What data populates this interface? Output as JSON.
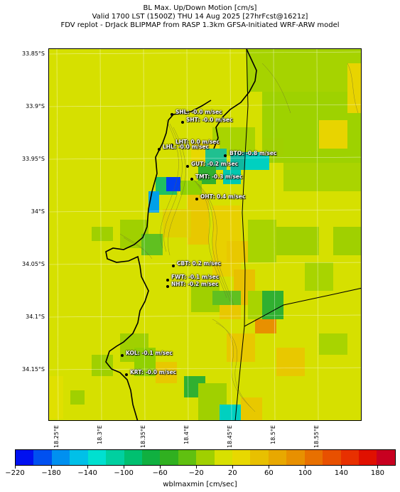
{
  "titles": {
    "line1": "BL Max. Up/Down Motion [cm/s]",
    "line2": "Valid 1700 LST (1500Z) THU 14 Aug 2025 [27hrFcst@1621z]",
    "line3": "FDV replot - DrJack BLIPMAP from RASP 1.3km GFSA-Initiated WRF-ARW model"
  },
  "lat_labels": [
    "33.85°S",
    "33.9°S",
    "33.95°S",
    "34°S",
    "34.05°S",
    "34.1°S",
    "34.15°S"
  ],
  "lon_labels": [
    "18.25°E",
    "18.3°E",
    "18.35°E",
    "18.4°E",
    "18.45°E",
    "18.5°E",
    "18.55°E"
  ],
  "stations": [
    {
      "code": "SHL",
      "label": "SHL: -0.0 m/sec"
    },
    {
      "code": "SHT",
      "label": "SHT: -0.0 m/sec"
    },
    {
      "code": "LHT",
      "label": "LHT: 0.0 m/sec"
    },
    {
      "code": "LHL",
      "label": "LHL: -0.0 m/sec"
    },
    {
      "code": "BTO",
      "label": "BTO: -0.8 m/sec"
    },
    {
      "code": "GUT",
      "label": "GUT: -0.2 m/sec"
    },
    {
      "code": "TMT",
      "label": "TMT: -0.3 m/sec"
    },
    {
      "code": "OHT",
      "label": "OHT: 0.4 m/sec"
    },
    {
      "code": "CBT",
      "label": "CBT: 0.2 m/sec"
    },
    {
      "code": "FWT",
      "label": "FWT: -0.1 m/sec"
    },
    {
      "code": "NHT",
      "label": "NHT: -0.2 m/sec"
    },
    {
      "code": "KOL",
      "label": "KOL: -0.1 m/sec"
    },
    {
      "code": "KRT",
      "label": "KRT: -0.0 m/sec"
    }
  ],
  "colorbar": {
    "title": "wblmaxmin [cm/sec]",
    "tick_labels": [
      "−220",
      "−180",
      "−140",
      "−100",
      "−60",
      "−20",
      "20",
      "60",
      "100",
      "140",
      "180"
    ],
    "colors": [
      "#0010f0",
      "#0050f0",
      "#0090f0",
      "#00c0e8",
      "#00e0d0",
      "#00d0a0",
      "#00c070",
      "#10b040",
      "#30b020",
      "#60c010",
      "#a0d000",
      "#d8e000",
      "#e8d800",
      "#e8c000",
      "#e8a800",
      "#e89000",
      "#e87000",
      "#e85000",
      "#e83000",
      "#e01000",
      "#c80020"
    ],
    "range": [
      -220,
      200
    ]
  }
}
